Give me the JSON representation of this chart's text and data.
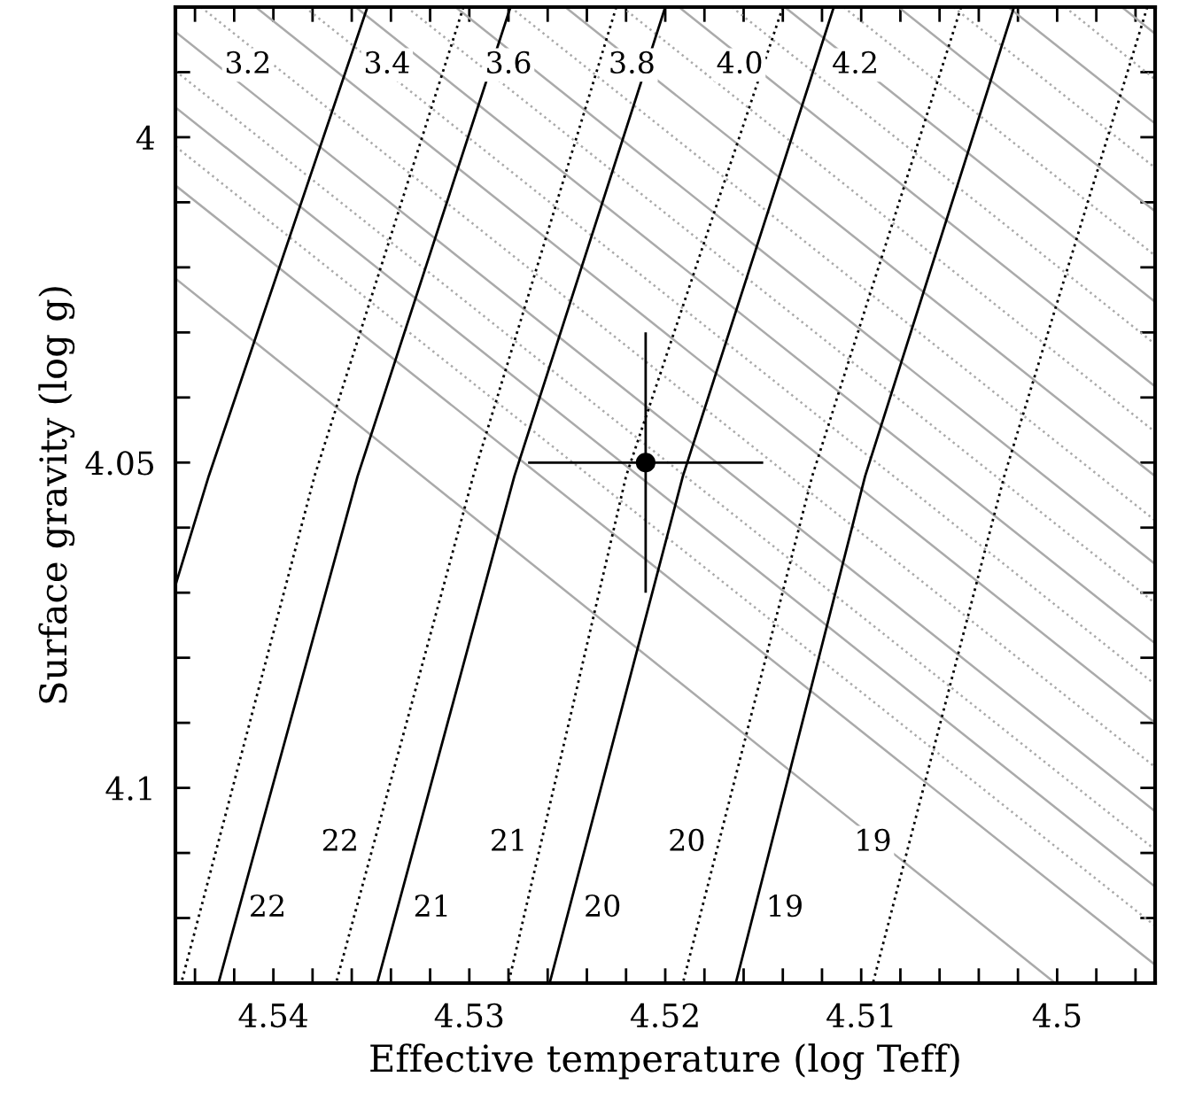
{
  "chart_data": {
    "type": "line",
    "xlabel": "Effective temperature (log Teff)",
    "ylabel": "Surface gravity (log g)",
    "xlim": [
      4.545,
      4.495
    ],
    "ylim": [
      4.13,
      3.98
    ],
    "xticks": [
      {
        "value": 4.544,
        "label": null
      },
      {
        "value": 4.542,
        "label": null
      },
      4.54,
      {
        "value": 4.538,
        "label": null
      },
      {
        "value": 4.536,
        "label": null
      },
      {
        "value": 4.534,
        "label": null
      },
      {
        "value": 4.532,
        "label": null
      },
      4.53,
      {
        "value": 4.528,
        "label": null
      },
      {
        "value": 4.526,
        "label": null
      },
      {
        "value": 4.524,
        "label": null
      },
      {
        "value": 4.522,
        "label": null
      },
      4.52,
      {
        "value": 4.518,
        "label": null
      },
      {
        "value": 4.516,
        "label": null
      },
      {
        "value": 4.514,
        "label": null
      },
      {
        "value": 4.512,
        "label": null
      },
      4.51,
      {
        "value": 4.508,
        "label": null
      },
      {
        "value": 4.506,
        "label": null
      },
      {
        "value": 4.504,
        "label": null
      },
      {
        "value": 4.502,
        "label": null
      },
      4.5,
      {
        "value": 4.498,
        "label": null
      },
      {
        "value": 4.496,
        "label": null
      }
    ],
    "yticks": [
      {
        "value": 3.99,
        "label": null
      },
      4,
      {
        "value": 4.01,
        "label": null
      },
      {
        "value": 4.02,
        "label": null
      },
      {
        "value": 4.03,
        "label": null
      },
      {
        "value": 4.04,
        "label": null
      },
      4.05,
      {
        "value": 4.06,
        "label": null
      },
      {
        "value": 4.07,
        "label": null
      },
      {
        "value": 4.08,
        "label": null
      },
      {
        "value": 4.09,
        "label": null
      },
      4.1,
      {
        "value": 4.11,
        "label": null
      },
      {
        "value": 4.12,
        "label": null
      }
    ],
    "grid": false,
    "legend": false,
    "series": [
      {
        "type": "line",
        "color": "#aaaaaa",
        "line_style": "solid",
        "x": [
          4.4967,
          4.495
        ],
        "values": [
          3.98,
          3.9841
        ]
      },
      {
        "type": "line",
        "color": "#aaaaaa",
        "line_style": "solid",
        "x": [
          4.5025,
          4.495
        ],
        "values": [
          3.98,
          3.9979
        ]
      },
      {
        "type": "line",
        "color": "#aaaaaa",
        "line_style": "solid",
        "x": [
          4.5081,
          4.495
        ],
        "values": [
          3.98,
          4.0114
        ]
      },
      {
        "type": "line",
        "color": "#aaaaaa",
        "line_style": "solid",
        "x": [
          4.5139,
          4.495
        ],
        "values": [
          3.98,
          4.0253
        ]
      },
      {
        "type": "line",
        "color": "#aaaaaa",
        "line_style": "solid",
        "x": [
          4.5193,
          4.495
        ],
        "values": [
          3.98,
          4.0383
        ]
      },
      {
        "type": "line",
        "color": "#aaaaaa",
        "line_style": "solid",
        "x": [
          4.5251,
          4.495
        ],
        "values": [
          3.98,
          4.0521
        ]
      },
      {
        "type": "line",
        "color": "#aaaaaa",
        "line_style": "solid",
        "x": [
          4.5307,
          4.495
        ],
        "values": [
          3.98,
          4.0656
        ]
      },
      {
        "type": "line",
        "color": "#aaaaaa",
        "line_style": "solid",
        "x": [
          4.5358,
          4.495
        ],
        "values": [
          3.98,
          4.0778
        ]
      },
      {
        "type": "line",
        "color": "#aaaaaa",
        "line_style": "solid",
        "x": [
          4.5409,
          4.495
        ],
        "values": [
          3.98,
          4.09
        ]
      },
      {
        "type": "line",
        "color": "#aaaaaa",
        "line_style": "solid",
        "x": [
          4.545,
          4.495
        ],
        "values": [
          3.9838,
          4.1036
        ]
      },
      {
        "type": "line",
        "color": "#aaaaaa",
        "line_style": "solid",
        "x": [
          4.545,
          4.495
        ],
        "values": [
          3.9954,
          4.1152
        ]
      },
      {
        "type": "line",
        "color": "#aaaaaa",
        "line_style": "solid",
        "x": [
          4.545,
          4.495
        ],
        "values": [
          4.0074,
          4.1272
        ]
      },
      {
        "type": "line",
        "color": "#aaaaaa",
        "line_style": "solid",
        "x": [
          4.545,
          4.5001
        ],
        "values": [
          4.0217,
          4.13
        ]
      },
      {
        "type": "line",
        "color": "#aaaaaa",
        "line_style": "dotted",
        "x": [
          4.4996,
          4.495
        ],
        "values": [
          3.98,
          3.9911
        ]
      },
      {
        "type": "line",
        "color": "#aaaaaa",
        "line_style": "dotted",
        "x": [
          4.5053,
          4.495
        ],
        "values": [
          3.98,
          4.0047
        ]
      },
      {
        "type": "line",
        "color": "#aaaaaa",
        "line_style": "dotted",
        "x": [
          4.5109,
          4.495
        ],
        "values": [
          3.98,
          4.0182
        ]
      },
      {
        "type": "line",
        "color": "#aaaaaa",
        "line_style": "dotted",
        "x": [
          4.5166,
          4.495
        ],
        "values": [
          3.98,
          4.0318
        ]
      },
      {
        "type": "line",
        "color": "#aaaaaa",
        "line_style": "dotted",
        "x": [
          4.5222,
          4.495
        ],
        "values": [
          3.98,
          4.0453
        ]
      },
      {
        "type": "line",
        "color": "#aaaaaa",
        "line_style": "dotted",
        "x": [
          4.5279,
          4.495
        ],
        "values": [
          3.98,
          4.0589
        ]
      },
      {
        "type": "line",
        "color": "#aaaaaa",
        "line_style": "dotted",
        "x": [
          4.5332,
          4.495
        ],
        "values": [
          3.98,
          4.0716
        ]
      },
      {
        "type": "line",
        "color": "#aaaaaa",
        "line_style": "dotted",
        "x": [
          4.5384,
          4.495
        ],
        "values": [
          3.98,
          4.0841
        ]
      },
      {
        "type": "line",
        "color": "#aaaaaa",
        "line_style": "dotted",
        "x": [
          4.5437,
          4.495
        ],
        "values": [
          3.98,
          4.0968
        ]
      },
      {
        "type": "line",
        "color": "#aaaaaa",
        "line_style": "dotted",
        "x": [
          4.545,
          4.495
        ],
        "values": [
          3.9898,
          4.1095
        ]
      },
      {
        "type": "line",
        "color": "#aaaaaa",
        "line_style": "dotted",
        "x": [
          4.545,
          4.495
        ],
        "values": [
          4.0014,
          4.1212
        ]
      },
      {
        "type": "line",
        "color": "#000000",
        "line_style": "solid",
        "x": [
          4.5352,
          4.5433,
          4.545
        ],
        "values": [
          3.98,
          4.0521,
          4.0689
        ]
      },
      {
        "type": "line",
        "color": "#000000",
        "line_style": "solid",
        "x": [
          4.5279,
          4.5357,
          4.5428
        ],
        "values": [
          3.98,
          4.0521,
          4.13
        ]
      },
      {
        "type": "line",
        "color": "#000000",
        "line_style": "solid",
        "x": [
          4.52,
          4.5277,
          4.5347
        ],
        "values": [
          3.98,
          4.0521,
          4.13
        ]
      },
      {
        "type": "line",
        "color": "#000000",
        "line_style": "solid",
        "x": [
          4.5114,
          4.5191,
          4.5259
        ],
        "values": [
          3.98,
          4.0521,
          4.13
        ]
      },
      {
        "type": "line",
        "color": "#000000",
        "line_style": "solid",
        "x": [
          4.5022,
          4.5098,
          4.5164
        ],
        "values": [
          3.98,
          4.0521,
          4.13
        ]
      },
      {
        "type": "line",
        "color": "#000000",
        "line_style": "dotted",
        "x": [
          4.5303,
          4.5379,
          4.5447
        ],
        "values": [
          3.98,
          4.0521,
          4.13
        ]
      },
      {
        "type": "line",
        "color": "#000000",
        "line_style": "dotted",
        "x": [
          4.5225,
          4.5298,
          4.5368
        ],
        "values": [
          3.98,
          4.0521,
          4.13
        ]
      },
      {
        "type": "line",
        "color": "#000000",
        "line_style": "dotted",
        "x": [
          4.514,
          4.522,
          4.528
        ],
        "values": [
          3.98,
          4.0521,
          4.13
        ]
      },
      {
        "type": "line",
        "color": "#000000",
        "line_style": "dotted",
        "x": [
          4.5049,
          4.5125,
          4.5191
        ],
        "values": [
          3.98,
          4.0521,
          4.13
        ]
      },
      {
        "type": "line",
        "color": "#000000",
        "line_style": "dotted",
        "x": [
          4.4954,
          4.5027,
          4.5094
        ],
        "values": [
          3.98,
          4.0521,
          4.13
        ]
      },
      {
        "type": "scatter",
        "color": "#000000",
        "marker": "circle",
        "x": [
          4.521
        ],
        "values": [
          4.05
        ],
        "errors": [
          0.02
        ],
        "xerrors": [
          0.006
        ]
      }
    ],
    "annotations": [
      {
        "text": "3.2",
        "x": 4.5413,
        "y": 3.9889
      },
      {
        "text": "3.4",
        "x": 4.5342,
        "y": 3.9889
      },
      {
        "text": "3.6",
        "x": 4.528,
        "y": 3.9889
      },
      {
        "text": "3.8",
        "x": 4.5217,
        "y": 3.9889
      },
      {
        "text": "4.0",
        "x": 4.5162,
        "y": 3.9889
      },
      {
        "text": "4.2",
        "x": 4.5103,
        "y": 3.9889
      },
      {
        "text": "22",
        "x": 4.5366,
        "y": 4.1084
      },
      {
        "text": "21",
        "x": 4.528,
        "y": 4.1084
      },
      {
        "text": "20",
        "x": 4.5189,
        "y": 4.1084
      },
      {
        "text": "19",
        "x": 4.5094,
        "y": 4.1084
      },
      {
        "text": "22",
        "x": 4.5403,
        "y": 4.1185
      },
      {
        "text": "21",
        "x": 4.5319,
        "y": 4.1185
      },
      {
        "text": "20",
        "x": 4.5232,
        "y": 4.1185
      },
      {
        "text": "19",
        "x": 4.5139,
        "y": 4.1185
      }
    ]
  }
}
